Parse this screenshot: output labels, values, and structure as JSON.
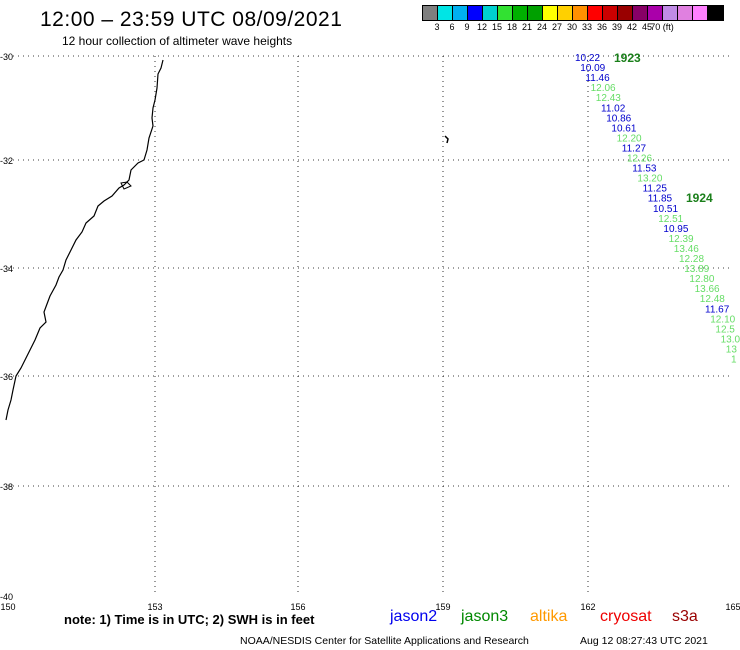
{
  "header": {
    "title": "12:00 – 23:59 UTC 08/09/2021",
    "subtitle": "12 hour collection of altimeter wave heights"
  },
  "colorbar": {
    "colors": [
      "#7f7f7f",
      "#00e5e5",
      "#00b0f0",
      "#0000ff",
      "#00d0d0",
      "#32e132",
      "#00b000",
      "#00a000",
      "#ffff00",
      "#ffd000",
      "#ff9000",
      "#ff0000",
      "#cc0000",
      "#990000",
      "#880066",
      "#aa00aa",
      "#c08ce6",
      "#e080e0",
      "#ff80ff",
      "#000000"
    ],
    "labels": [
      "3",
      "6",
      "9",
      "12",
      "15",
      "18",
      "21",
      "24",
      "27",
      "30",
      "33",
      "36",
      "39",
      "42",
      "45",
      "70 (ft)"
    ]
  },
  "axes": {
    "lat_labels": [
      "-30",
      "-32",
      "-34",
      "-36",
      "-38",
      "-40"
    ],
    "lon_labels": [
      "150",
      "153",
      "156",
      "159",
      "162",
      "165"
    ]
  },
  "passes": [
    {
      "id": "1923",
      "color": "#1a7f1a"
    },
    {
      "id": "1924",
      "color": "#1a7f1a"
    }
  ],
  "track": [
    {
      "text": "10.22",
      "color": "#0000cc"
    },
    {
      "text": "10.09",
      "color": "#0000cc"
    },
    {
      "text": "11.46",
      "color": "#0000cc"
    },
    {
      "text": "12.06",
      "color": "#66dd66"
    },
    {
      "text": "12.43",
      "color": "#66dd66"
    },
    {
      "text": "11.02",
      "color": "#0000cc"
    },
    {
      "text": "10.86",
      "color": "#0000cc"
    },
    {
      "text": "10.61",
      "color": "#0000cc"
    },
    {
      "text": "12.20",
      "color": "#66dd66"
    },
    {
      "text": "11.27",
      "color": "#0000cc"
    },
    {
      "text": "12.26",
      "color": "#66dd66"
    },
    {
      "text": "11.53",
      "color": "#0000cc"
    },
    {
      "text": "13.20",
      "color": "#66dd66"
    },
    {
      "text": "11.25",
      "color": "#0000cc"
    },
    {
      "text": "11.85",
      "color": "#0000cc"
    },
    {
      "text": "10.51",
      "color": "#0000cc"
    },
    {
      "text": "12.51",
      "color": "#66dd66"
    },
    {
      "text": "10.95",
      "color": "#0000cc"
    },
    {
      "text": "12.39",
      "color": "#66dd66"
    },
    {
      "text": "13.46",
      "color": "#66dd66"
    },
    {
      "text": "12.28",
      "color": "#66dd66"
    },
    {
      "text": "13.89",
      "color": "#66dd66"
    },
    {
      "text": "12.80",
      "color": "#66dd66"
    },
    {
      "text": "13.66",
      "color": "#66dd66"
    },
    {
      "text": "12.48",
      "color": "#66dd66"
    },
    {
      "text": "11.67",
      "color": "#0000cc"
    },
    {
      "text": "12.10",
      "color": "#66dd66"
    },
    {
      "text": "12.5",
      "color": "#66dd66"
    },
    {
      "text": "13.0",
      "color": "#66dd66"
    },
    {
      "text": "13",
      "color": "#66dd66"
    },
    {
      "text": "1",
      "color": "#66dd66"
    }
  ],
  "footer": {
    "note": "note: 1) Time is in UTC; 2) SWH is in feet",
    "satellites": [
      {
        "name": "jason2",
        "color": "#0000ee"
      },
      {
        "name": "jason3",
        "color": "#008800"
      },
      {
        "name": "altika",
        "color": "#ff9900"
      },
      {
        "name": "cryosat",
        "color": "#ee0000"
      },
      {
        "name": "s3a",
        "color": "#990000"
      }
    ],
    "credit": "NOAA/NESDIS Center for Satellite Applications and Research",
    "timestamp": "Aug 12 08:27:43 UTC 2021"
  }
}
